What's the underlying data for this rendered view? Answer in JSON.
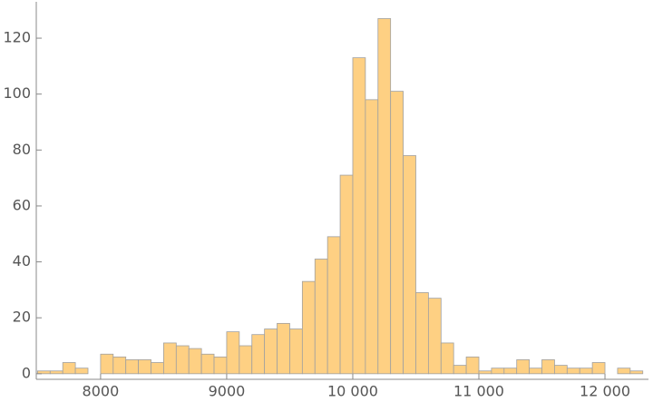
{
  "chart_data": {
    "type": "histogram",
    "bins": [
      7500,
      7600,
      7700,
      7800,
      7900,
      8000,
      8100,
      8200,
      8300,
      8400,
      8500,
      8600,
      8700,
      8800,
      8900,
      9000,
      9100,
      9200,
      9300,
      9400,
      9500,
      9600,
      9700,
      9800,
      9900,
      10000,
      10100,
      10200,
      10300,
      10400,
      10500,
      10600,
      10700,
      10800,
      10900,
      11000,
      11100,
      11200,
      11300,
      11400,
      11500,
      11600,
      11700,
      11800,
      11900,
      12000,
      12100,
      12200,
      12300
    ],
    "values": [
      1,
      1,
      4,
      2,
      0,
      7,
      6,
      5,
      5,
      4,
      11,
      10,
      9,
      7,
      6,
      15,
      10,
      14,
      16,
      18,
      16,
      33,
      41,
      49,
      71,
      113,
      98,
      127,
      101,
      78,
      29,
      27,
      11,
      3,
      6,
      1,
      2,
      2,
      5,
      2,
      5,
      3,
      2,
      2,
      4,
      0,
      2,
      1
    ],
    "color": "#fed083",
    "xlim": [
      7490,
      12345
    ],
    "ylim": [
      -2,
      133
    ],
    "xticks": [
      {
        "value": 8000,
        "label": "8000"
      },
      {
        "value": 9000,
        "label": "9000"
      },
      {
        "value": 10000,
        "label": "10 000"
      },
      {
        "value": 11000,
        "label": "11 000"
      },
      {
        "value": 12000,
        "label": "12 000"
      }
    ],
    "yticks": [
      0,
      20,
      40,
      60,
      80,
      100,
      120
    ]
  }
}
